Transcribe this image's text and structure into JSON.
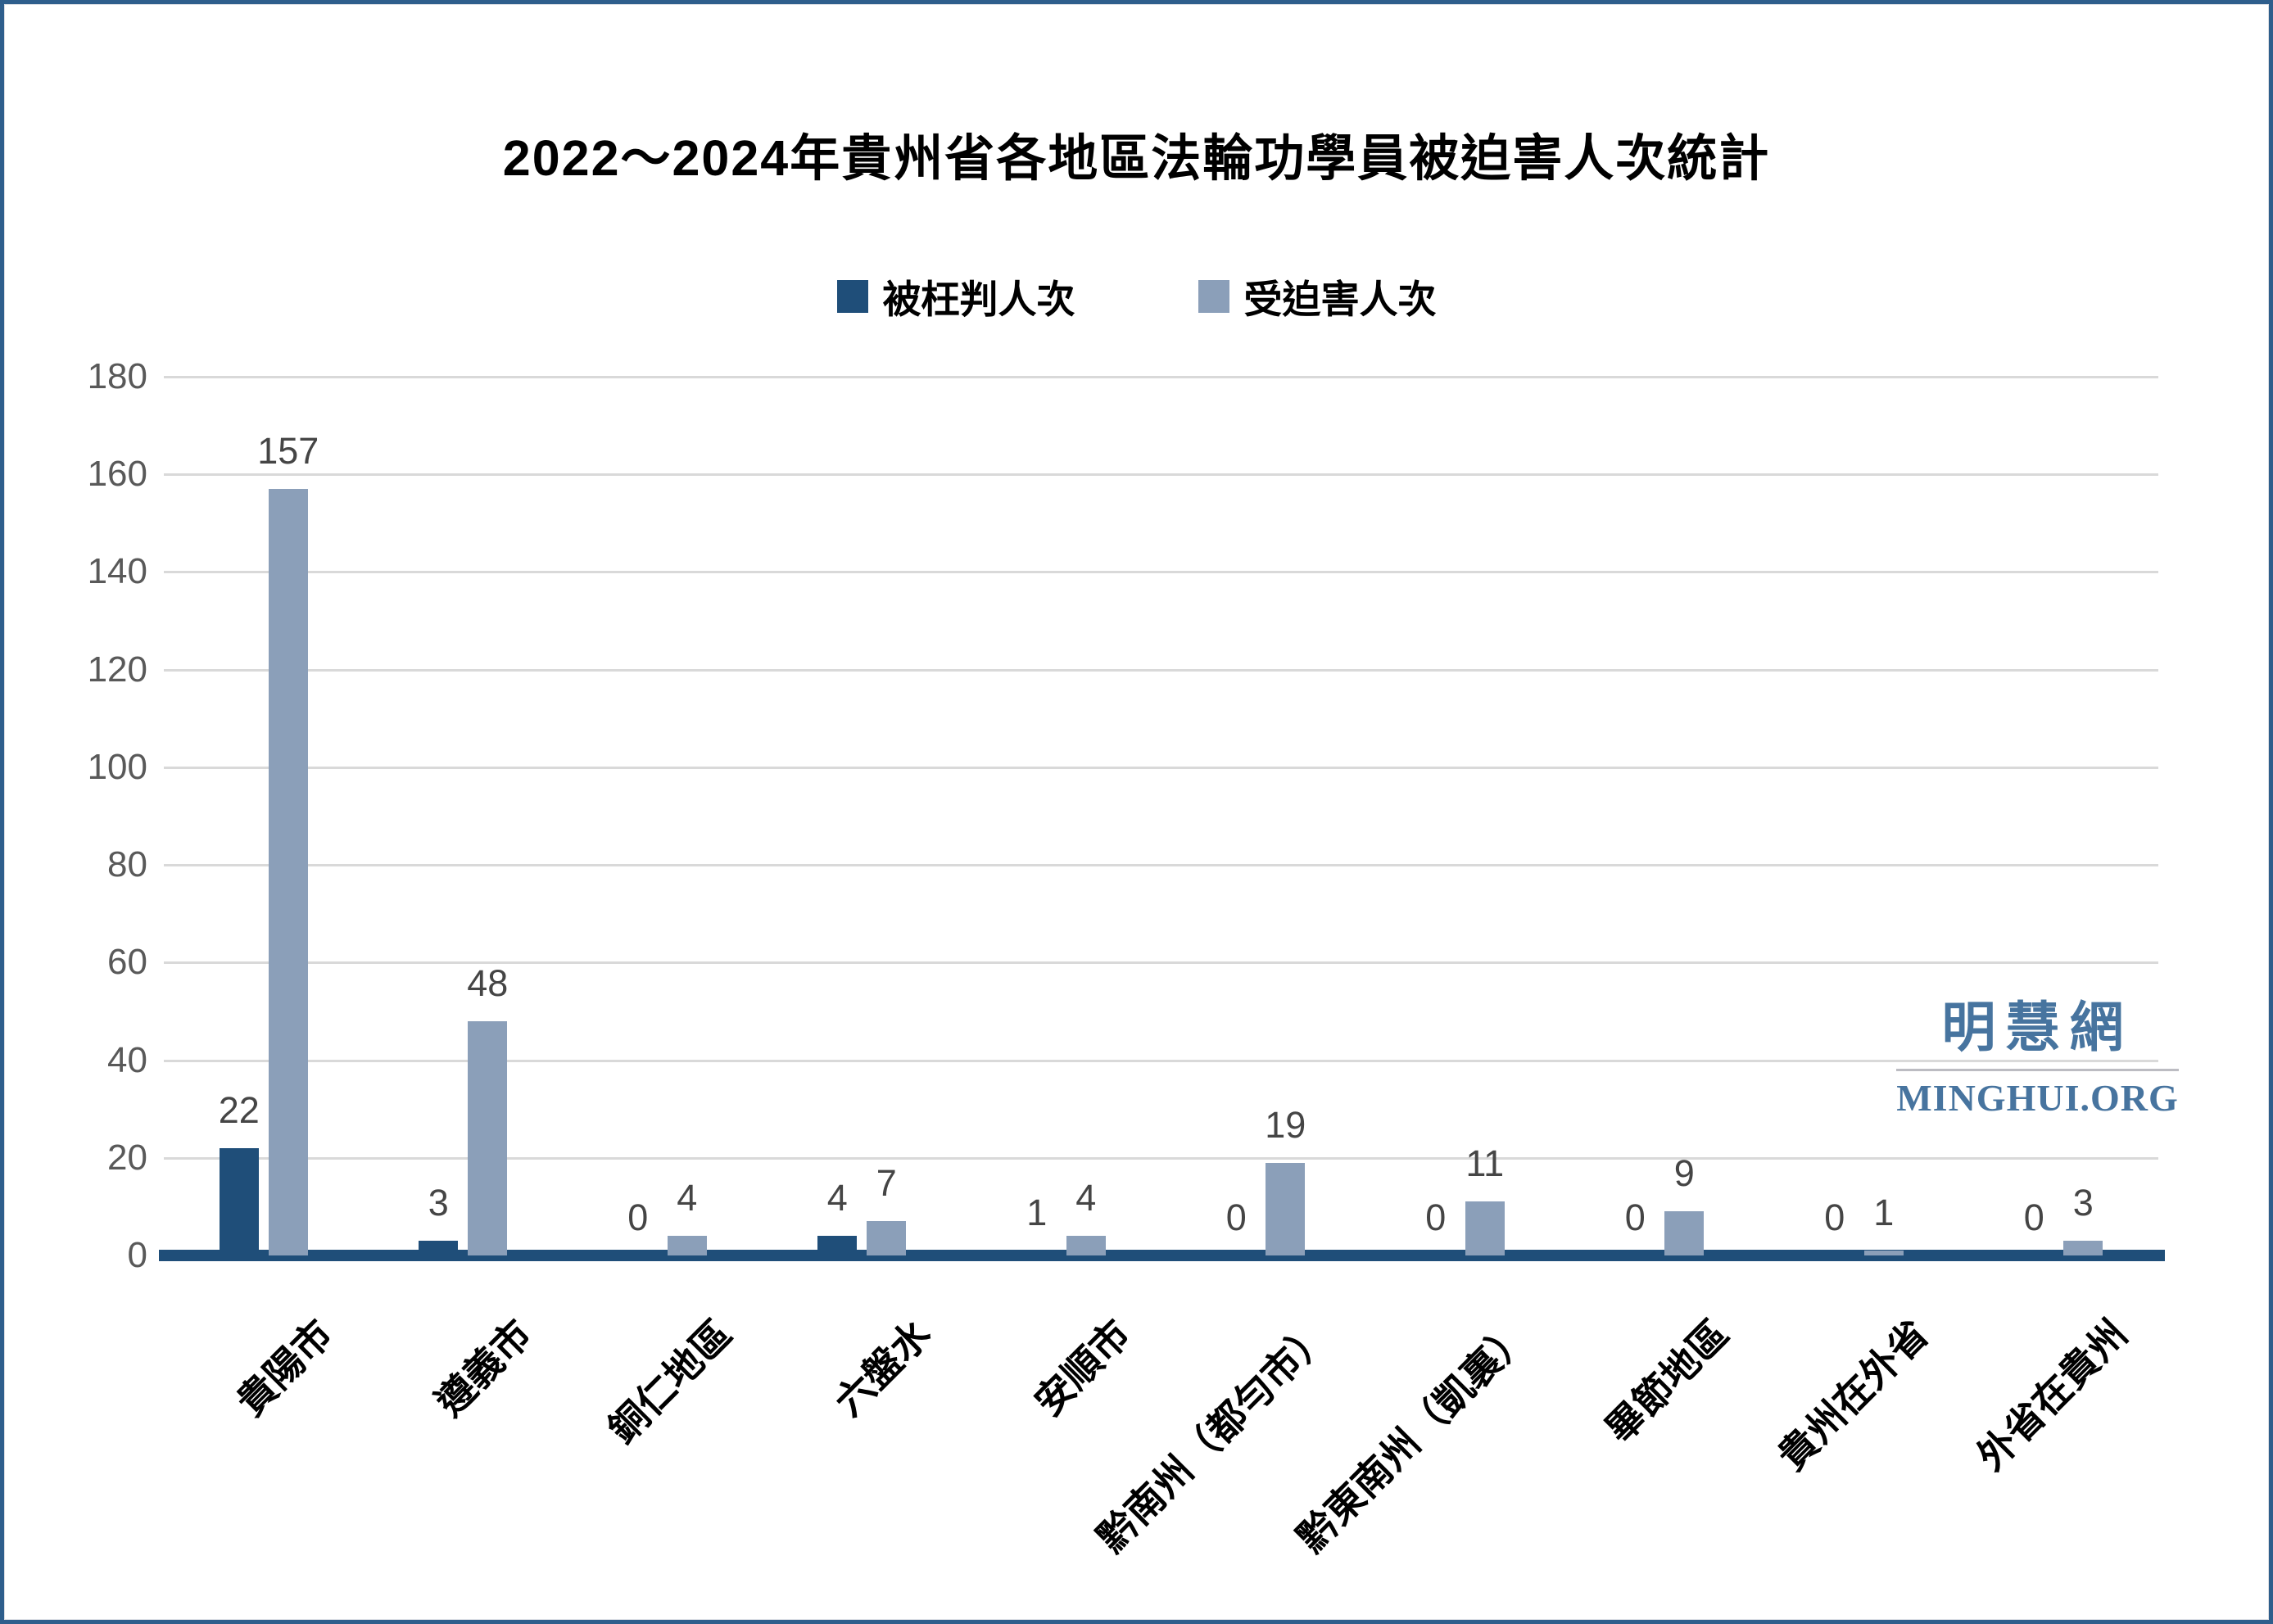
{
  "title": "2022～2024年貴州省各地區法輪功學員被迫害人次統計",
  "legend": [
    {
      "label": "被枉判人次",
      "color": "#1f4e79"
    },
    {
      "label": "受迫害人次",
      "color": "#8b9fb9"
    }
  ],
  "watermark": {
    "cjk": "明慧網",
    "latin": "MINGHUI.ORG",
    "color": "#47749f"
  },
  "colors": {
    "axis_line": "#1f4e79",
    "gridline": "#d9d9d9",
    "tick_label": "#595959",
    "value_label": "#454545",
    "frame_border": "#2e5e8c"
  },
  "chart_data": {
    "type": "bar",
    "title": "2022～2024年貴州省各地區法輪功學員被迫害人次統計",
    "categories": [
      "貴陽市",
      "遵義市",
      "銅仁地區",
      "六盤水",
      "安順市",
      "黔南州（都勻市）",
      "黔東南州（凱裏）",
      "畢節地區",
      "貴州在外省",
      "外省在貴州"
    ],
    "series": [
      {
        "name": "被枉判人次",
        "color": "#1f4e79",
        "values": [
          22,
          3,
          0,
          4,
          1,
          0,
          0,
          0,
          0,
          0
        ]
      },
      {
        "name": "受迫害人次",
        "color": "#8b9fb9",
        "values": [
          157,
          48,
          4,
          7,
          4,
          19,
          11,
          9,
          1,
          3
        ]
      }
    ],
    "xlabel": "",
    "ylabel": "",
    "ylim": [
      0,
      180
    ],
    "yticks": [
      0,
      20,
      40,
      60,
      80,
      100,
      120,
      140,
      160,
      180
    ],
    "grid": true,
    "legend_position": "top",
    "data_labels": true
  }
}
